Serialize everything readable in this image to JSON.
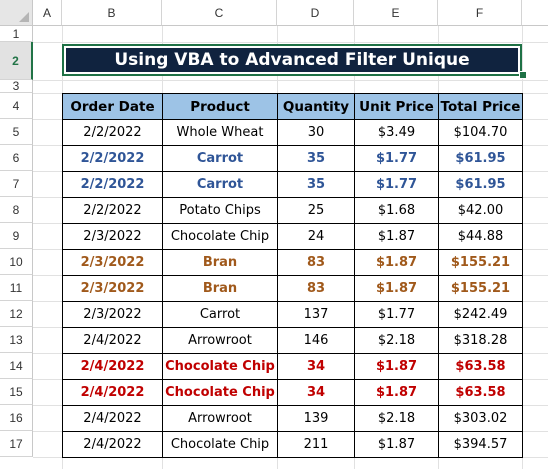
{
  "sheet": {
    "columns": [
      "A",
      "B",
      "C",
      "D",
      "E",
      "F"
    ],
    "rows": [
      "1",
      "2",
      "3",
      "4",
      "5",
      "6",
      "7",
      "8",
      "9",
      "10",
      "11",
      "12",
      "13",
      "14",
      "15",
      "16",
      "17"
    ],
    "selected_row": "2",
    "title": "Using VBA to Advanced Filter Unique"
  },
  "table": {
    "headers": [
      "Order Date",
      "Product",
      "Quantity",
      "Unit Price",
      "Total Price"
    ],
    "rows": [
      {
        "cells": [
          "2/2/2022",
          "Whole Wheat",
          "30",
          "$3.49",
          "$104.70"
        ],
        "highlight": "none"
      },
      {
        "cells": [
          "2/2/2022",
          "Carrot",
          "35",
          "$1.77",
          "$61.95"
        ],
        "highlight": "blue"
      },
      {
        "cells": [
          "2/2/2022",
          "Carrot",
          "35",
          "$1.77",
          "$61.95"
        ],
        "highlight": "blue"
      },
      {
        "cells": [
          "2/2/2022",
          "Potato Chips",
          "25",
          "$1.68",
          "$42.00"
        ],
        "highlight": "none"
      },
      {
        "cells": [
          "2/3/2022",
          "Chocolate Chip",
          "24",
          "$1.87",
          "$44.88"
        ],
        "highlight": "none"
      },
      {
        "cells": [
          "2/3/2022",
          "Bran",
          "83",
          "$1.87",
          "$155.21"
        ],
        "highlight": "brown"
      },
      {
        "cells": [
          "2/3/2022",
          "Bran",
          "83",
          "$1.87",
          "$155.21"
        ],
        "highlight": "brown"
      },
      {
        "cells": [
          "2/3/2022",
          "Carrot",
          "137",
          "$1.77",
          "$242.49"
        ],
        "highlight": "none"
      },
      {
        "cells": [
          "2/4/2022",
          "Arrowroot",
          "146",
          "$2.18",
          "$318.28"
        ],
        "highlight": "none"
      },
      {
        "cells": [
          "2/4/2022",
          "Chocolate Chip",
          "34",
          "$1.87",
          "$63.58"
        ],
        "highlight": "red"
      },
      {
        "cells": [
          "2/4/2022",
          "Chocolate Chip",
          "34",
          "$1.87",
          "$63.58"
        ],
        "highlight": "red"
      },
      {
        "cells": [
          "2/4/2022",
          "Arrowroot",
          "139",
          "$2.18",
          "$303.02"
        ],
        "highlight": "none"
      },
      {
        "cells": [
          "2/4/2022",
          "Chocolate Chip",
          "211",
          "$1.87",
          "$394.57"
        ],
        "highlight": "none"
      }
    ]
  },
  "colors": {
    "header_fill": "#9dc3e6",
    "title_fill": "#10233f",
    "dup_blue": "#2f5597",
    "dup_brown": "#a0591b",
    "dup_red": "#c00000",
    "selection": "#1e7145"
  }
}
